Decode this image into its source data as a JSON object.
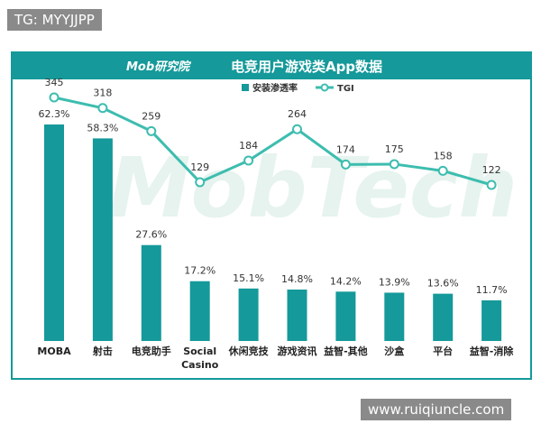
{
  "watermark": "TG: MYYJJPP",
  "footer_url": "www.ruiqiuncle.com",
  "logo": "Mob研究院",
  "background_text": "MobTech",
  "chart_data": {
    "type": "bar",
    "title": "电竞用户游戏类App数据",
    "categories": [
      "MOBA",
      "射击",
      "电竞助手",
      "Social Casino",
      "休闲竞技",
      "游戏资讯",
      "益智-其他",
      "沙盒",
      "平台",
      "益智-消除"
    ],
    "series": [
      {
        "name": "安装渗透率",
        "type": "bar",
        "color": "#15999a",
        "values": [
          62.3,
          58.3,
          27.6,
          17.2,
          15.1,
          14.8,
          14.2,
          13.9,
          13.6,
          11.7
        ],
        "value_labels": [
          "62.3%",
          "58.3%",
          "27.6%",
          "17.2%",
          "15.1%",
          "14.8%",
          "14.2%",
          "13.9%",
          "13.6%",
          "11.7%"
        ]
      },
      {
        "name": "TGI",
        "type": "line",
        "axis": "y2",
        "color": "#3dbdaf",
        "values": [
          345,
          318,
          259,
          129,
          184,
          264,
          174,
          175,
          158,
          122
        ]
      }
    ]
  }
}
